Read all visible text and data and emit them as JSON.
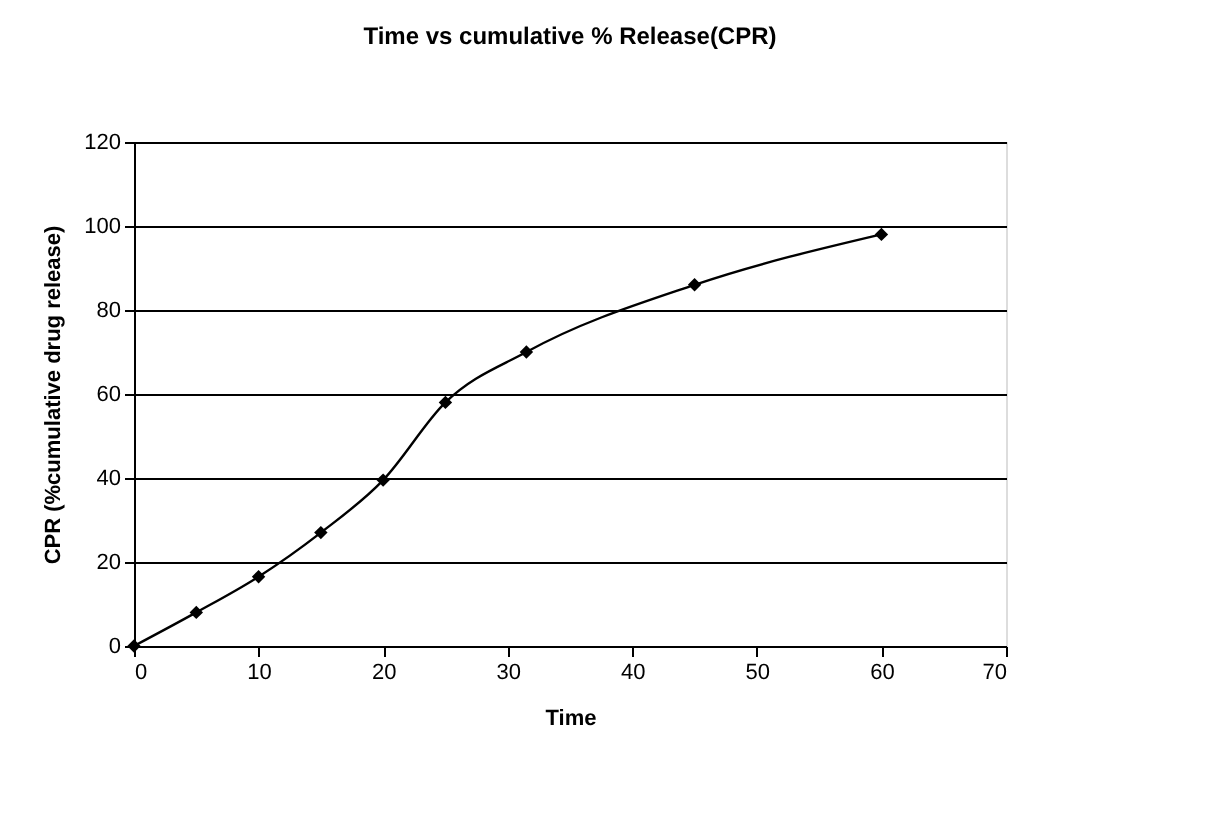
{
  "chart_data": {
    "type": "line",
    "title": "Time vs cumulative % Release(CPR)",
    "xlabel": "Time",
    "ylabel": "CPR (%cumulative drug release)",
    "x": [
      0,
      5,
      10,
      15,
      20,
      25,
      31.5,
      45,
      60
    ],
    "series": [
      {
        "color": "#000000",
        "values": [
          0,
          8,
          16.5,
          27,
          39.5,
          58,
          70,
          86,
          98
        ]
      }
    ],
    "xlim": [
      0,
      70
    ],
    "xticks": [
      0,
      10,
      20,
      30,
      40,
      50,
      60,
      70
    ],
    "ylim": [
      0,
      120
    ],
    "yticks": [
      0,
      20,
      40,
      60,
      80,
      100,
      120
    ],
    "grid": "y",
    "marker": "diamond",
    "line_style": "solid"
  }
}
